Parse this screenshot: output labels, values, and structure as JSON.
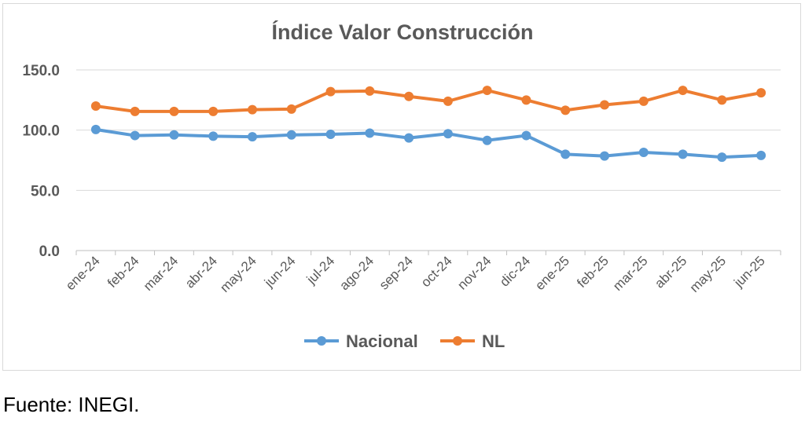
{
  "chart_data": {
    "type": "line",
    "title": "Índice Valor Construcción",
    "xlabel": "",
    "ylabel": "",
    "ylim": [
      0,
      150
    ],
    "yticks": [
      "0.0",
      "50.0",
      "100.0",
      "150.0"
    ],
    "grid": true,
    "legend_position": "bottom",
    "categories": [
      "ene-24",
      "feb-24",
      "mar-24",
      "abr-24",
      "may-24",
      "jun-24",
      "jul-24",
      "ago-24",
      "sep-24",
      "oct-24",
      "nov-24",
      "dic-24",
      "ene-25",
      "feb-25",
      "mar-25",
      "abr-25",
      "may-25",
      "jun-25"
    ],
    "series": [
      {
        "name": "Nacional",
        "color": "#5b9bd5",
        "values": [
          100.5,
          95.5,
          96.0,
          95.0,
          94.5,
          96.0,
          96.5,
          97.5,
          93.5,
          97.0,
          91.5,
          95.5,
          80.0,
          78.5,
          81.5,
          80.0,
          77.5,
          79.0
        ]
      },
      {
        "name": "NL",
        "color": "#ed7d31",
        "values": [
          120.0,
          115.5,
          115.5,
          115.5,
          117.0,
          117.5,
          132.0,
          132.5,
          128.0,
          124.0,
          133.0,
          125.0,
          116.5,
          121.0,
          124.0,
          133.0,
          125.0,
          131.0
        ]
      }
    ]
  },
  "source_note": "Fuente: INEGI."
}
